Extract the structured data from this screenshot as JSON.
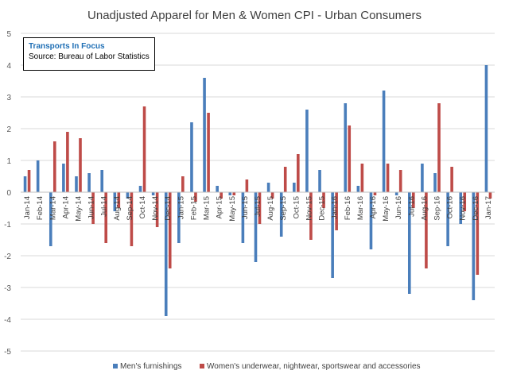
{
  "chart_data": {
    "type": "bar",
    "title": "Unadjusted Apparel for Men & Women CPI - Urban Consumers",
    "source_box": {
      "title": "Transports  In Focus",
      "text": "Source: Bureau of Labor Statistics"
    },
    "ylim": [
      -5,
      5
    ],
    "yticks": [
      5,
      4,
      3,
      2,
      1,
      0,
      -1,
      -2,
      -3,
      -4,
      -5
    ],
    "grid": true,
    "legend_position": "bottom",
    "tick_labels_shown": [
      "Jan-14",
      "Feb-14",
      "Mar-14",
      "Apr-14",
      "May-14",
      "Jun-14",
      "Jul-14",
      "Aug-14",
      "Sep-14",
      "Oct-14",
      "Nov-14",
      "Dec-14",
      "Jan-15",
      "Feb-15",
      "Mar-15",
      "Apr-15",
      "May-15",
      "Jun-15",
      "Jul-15",
      "Aug-15",
      "Sep-15",
      "Oct-15",
      "Nov-15",
      "Dec-15",
      "Jan-16",
      "Feb-16",
      "Mar-16",
      "Apr-16",
      "May-16",
      "Jun-16",
      "Jul-16",
      "Aug-16",
      "Sep-16",
      "Oct-16",
      "Nov-16",
      "Dec-16",
      "Jan-17"
    ],
    "categories": [
      "Jan-14",
      "Feb-14",
      "Mar-14",
      "Apr-14",
      "May-14",
      "Jun-14",
      "Jul-14",
      "Aug-14",
      "Sep-14",
      "Oct-14",
      "Nov-14",
      "Dec-14",
      "Jan-15",
      "Feb-15",
      "Mar-15",
      "Apr-15",
      "May-15",
      "Jun-15",
      "Jul-15",
      "Aug-15",
      "Sep-15",
      "Oct-15",
      "Nov-15",
      "Dec-15",
      "Jan-16",
      "Feb-16",
      "Mar-16",
      "Apr-16",
      "May-16",
      "Jun-16",
      "Jul-16",
      "Aug-16",
      "Sep-16",
      "Oct-16",
      "Nov-16",
      "Dec-16",
      "Jan-17"
    ],
    "series": [
      {
        "name": "Men's furnishings",
        "color": "#4a7ebb",
        "values": [
          0.5,
          1.0,
          -1.7,
          0.9,
          0.5,
          0.6,
          0.7,
          -0.6,
          -0.2,
          0.2,
          -0.1,
          -3.9,
          -1.6,
          2.2,
          3.6,
          0.2,
          -0.1,
          -1.6,
          -2.2,
          0.3,
          -1.4,
          0.3,
          2.6,
          0.7,
          -2.7,
          2.8,
          0.2,
          -1.8,
          3.2,
          -0.1,
          -3.2,
          0.9,
          0.6,
          -1.7,
          -1.0,
          -3.4,
          4.0
        ]
      },
      {
        "name": "Women's underwear, nightwear, sportswear and accessories",
        "color": "#be4b48",
        "values": [
          0.7,
          0.0,
          1.6,
          1.9,
          1.7,
          -1.0,
          -1.6,
          -0.5,
          -1.7,
          2.7,
          -1.1,
          -2.4,
          0.5,
          -0.3,
          2.5,
          -0.2,
          -0.1,
          0.4,
          -1.0,
          -0.2,
          0.8,
          1.2,
          -1.5,
          -0.5,
          -1.2,
          2.1,
          0.9,
          -0.1,
          0.9,
          0.7,
          -0.5,
          -2.4,
          2.8,
          0.8,
          -0.6,
          -2.6,
          -0.2
        ]
      }
    ]
  }
}
